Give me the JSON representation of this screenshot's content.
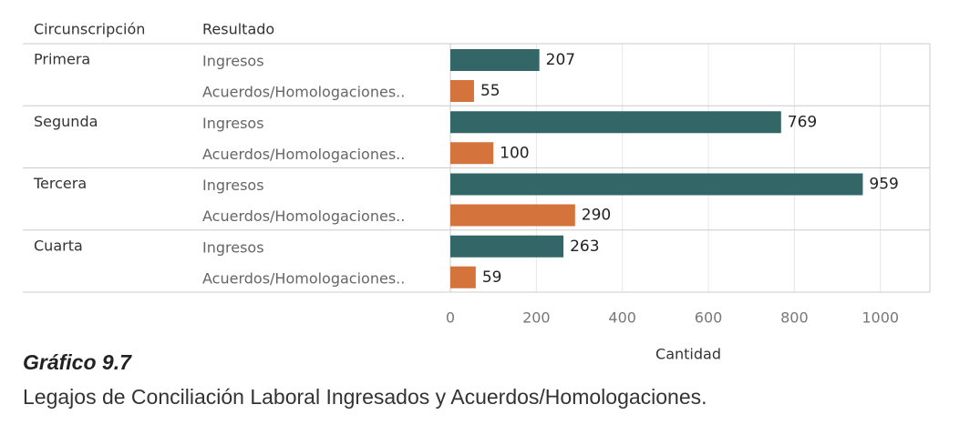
{
  "chart_data": {
    "type": "bar",
    "orientation": "horizontal",
    "column_headers": [
      "Circunscripción",
      "Resultado"
    ],
    "categories": [
      "Primera",
      "Segunda",
      "Tercera",
      "Cuarta"
    ],
    "series": [
      {
        "name": "Ingresos",
        "color": "#336666",
        "values": [
          207,
          769,
          959,
          263
        ]
      },
      {
        "name": "Acuerdos/Homologaciones..",
        "color": "#d4733c",
        "values": [
          55,
          100,
          290,
          59
        ]
      }
    ],
    "xlabel": "Cantidad",
    "xlim": [
      0,
      1115
    ],
    "xticks": [
      0,
      200,
      400,
      600,
      800,
      1000
    ],
    "grid": true
  },
  "caption": {
    "label": "Gráfico 9.7",
    "text": "Legajos de Conciliación Laboral Ingresados y Acuerdos/Homologaciones."
  }
}
